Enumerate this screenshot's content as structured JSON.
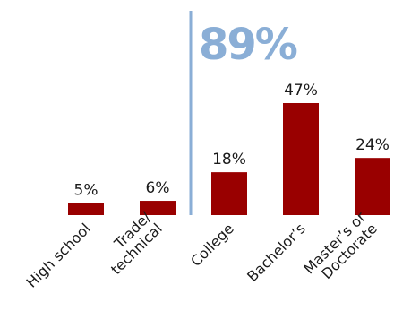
{
  "chart_data": {
    "type": "bar",
    "categories": [
      [
        "High school"
      ],
      [
        "Trade/",
        "technical"
      ],
      [
        "College"
      ],
      [
        "Bachelor’s"
      ],
      [
        "Master’s or",
        "Doctorate"
      ]
    ],
    "values": [
      5,
      6,
      18,
      47,
      24
    ],
    "value_labels": [
      "5%",
      "6%",
      "18%",
      "47%",
      "24%"
    ],
    "highlight_label": "89%",
    "bar_color": "#990000",
    "highlight_color": "#8aaed6",
    "ylim": [
      0,
      50
    ]
  }
}
